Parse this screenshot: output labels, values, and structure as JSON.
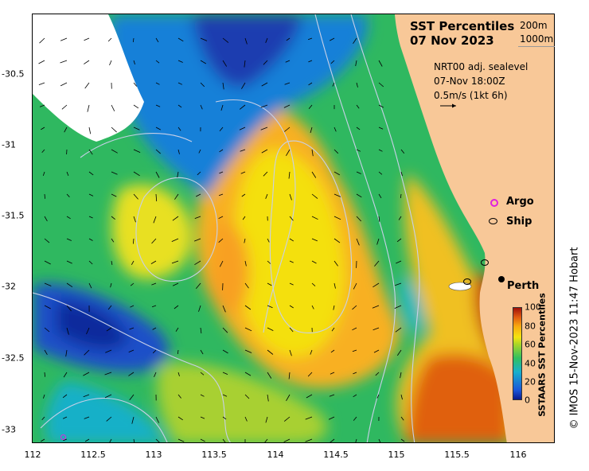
{
  "title": {
    "line1": "SST Percentiles",
    "line2": "07 Nov 2023"
  },
  "isobaths": {
    "a": "200m",
    "b": "1000m"
  },
  "currents": {
    "source": "NRT00 adj. sealevel",
    "time": "07-Nov 18:00Z",
    "scale": "0.5m/s (1kt 6h)"
  },
  "legend": {
    "argo": "Argo",
    "ship": "Ship"
  },
  "place": {
    "perth": "Perth"
  },
  "x_ticks": [
    "112",
    "112.5",
    "113",
    "113.5",
    "114",
    "114.5",
    "115",
    "115.5",
    "116"
  ],
  "y_ticks": [
    "-30.5",
    "-31",
    "-31.5",
    "-32",
    "-32.5",
    "-33"
  ],
  "colorbar": {
    "title": "SSTAARS SST Percentiles",
    "ticks": [
      "100",
      "80",
      "60",
      "40",
      "20",
      "0"
    ],
    "colors": [
      "#0a1a8c",
      "#1a55d8",
      "#18b0cc",
      "#30c060",
      "#a8d628",
      "#f4e410",
      "#f8a810",
      "#e05a10",
      "#a01008"
    ]
  },
  "land_color": "#f8c898",
  "credit": "© IMOS 15-Nov-2023 11:47 Hobart"
}
